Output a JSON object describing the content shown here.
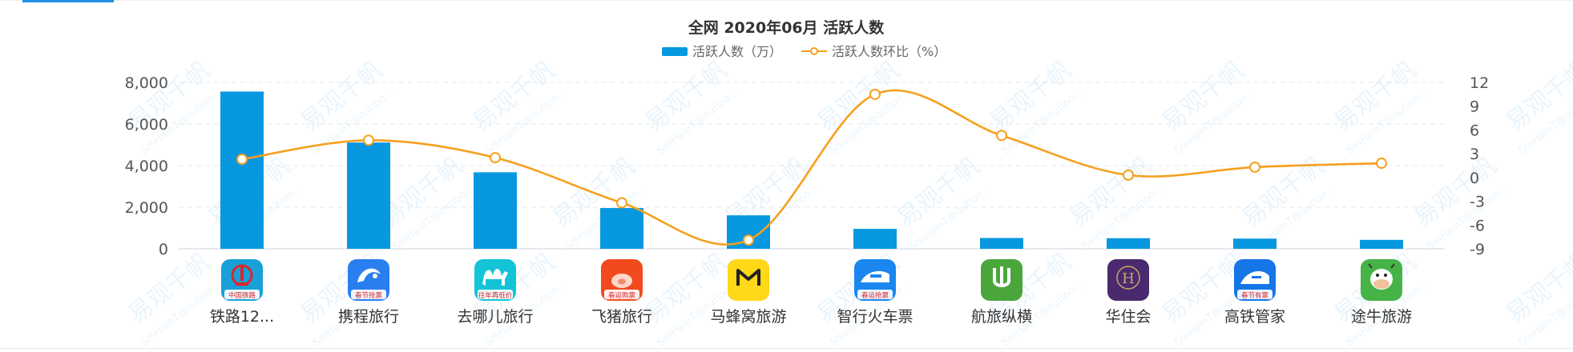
{
  "chart_data": {
    "type": "bar",
    "title": "全网 2020年06月 活跃人数",
    "categories": [
      "铁路12...",
      "携程旅行",
      "去哪儿旅行",
      "飞猪旅行",
      "马蜂窝旅游",
      "智行火车票",
      "航旅纵横",
      "华住会",
      "高铁管家",
      "途牛旅游"
    ],
    "series": [
      {
        "name": "活跃人数（万）",
        "type": "bar",
        "axis": "left",
        "color": "#0898e0",
        "values": [
          7560,
          5110,
          3680,
          1960,
          1610,
          960,
          520,
          510,
          490,
          430
        ]
      },
      {
        "name": "活跃人数环比（%）",
        "type": "line",
        "axis": "right",
        "color": "#f5a01e",
        "values": [
          2.3,
          4.7,
          2.5,
          -3.2,
          -7.9,
          10.5,
          5.3,
          0.3,
          1.3,
          1.8
        ]
      }
    ],
    "ylim_left": [
      0,
      8000
    ],
    "yticks_left": [
      "8,000",
      "6,000",
      "4,000",
      "2,000",
      "0"
    ],
    "ylim_right": [
      -9,
      12
    ],
    "yticks_right": [
      "12",
      "9",
      "6",
      "3",
      "0",
      "-3",
      "-6",
      "-9"
    ],
    "grid": true,
    "legend_position": "top-center",
    "app_icons": [
      {
        "icon": "railway-12306-icon",
        "color": "#19a0d8",
        "caption": "中国铁路"
      },
      {
        "icon": "ctrip-dolphin-icon",
        "color": "#2a7ff0",
        "caption": "春节抢票"
      },
      {
        "icon": "qunar-camel-icon",
        "color": "#13c4d6",
        "caption": "往年再低价"
      },
      {
        "icon": "fliggy-pig-icon",
        "color": "#f04a1e",
        "caption": "春运购票"
      },
      {
        "icon": "mafengwo-icon",
        "color": "#ffd817",
        "caption": ""
      },
      {
        "icon": "zhixing-train-icon",
        "color": "#1b86f0",
        "caption": "春运抢票"
      },
      {
        "icon": "umetrip-icon",
        "color": "#4aa63b",
        "caption": ""
      },
      {
        "icon": "huazhu-icon",
        "color": "#4a2a6e",
        "caption": ""
      },
      {
        "icon": "gtgj-train-icon",
        "color": "#1576e8",
        "caption": "春节有票"
      },
      {
        "icon": "tuniu-cow-icon",
        "color": "#46b347",
        "caption": ""
      }
    ],
    "watermark": [
      "易观千帆",
      "SmHainT@outloo..."
    ]
  }
}
